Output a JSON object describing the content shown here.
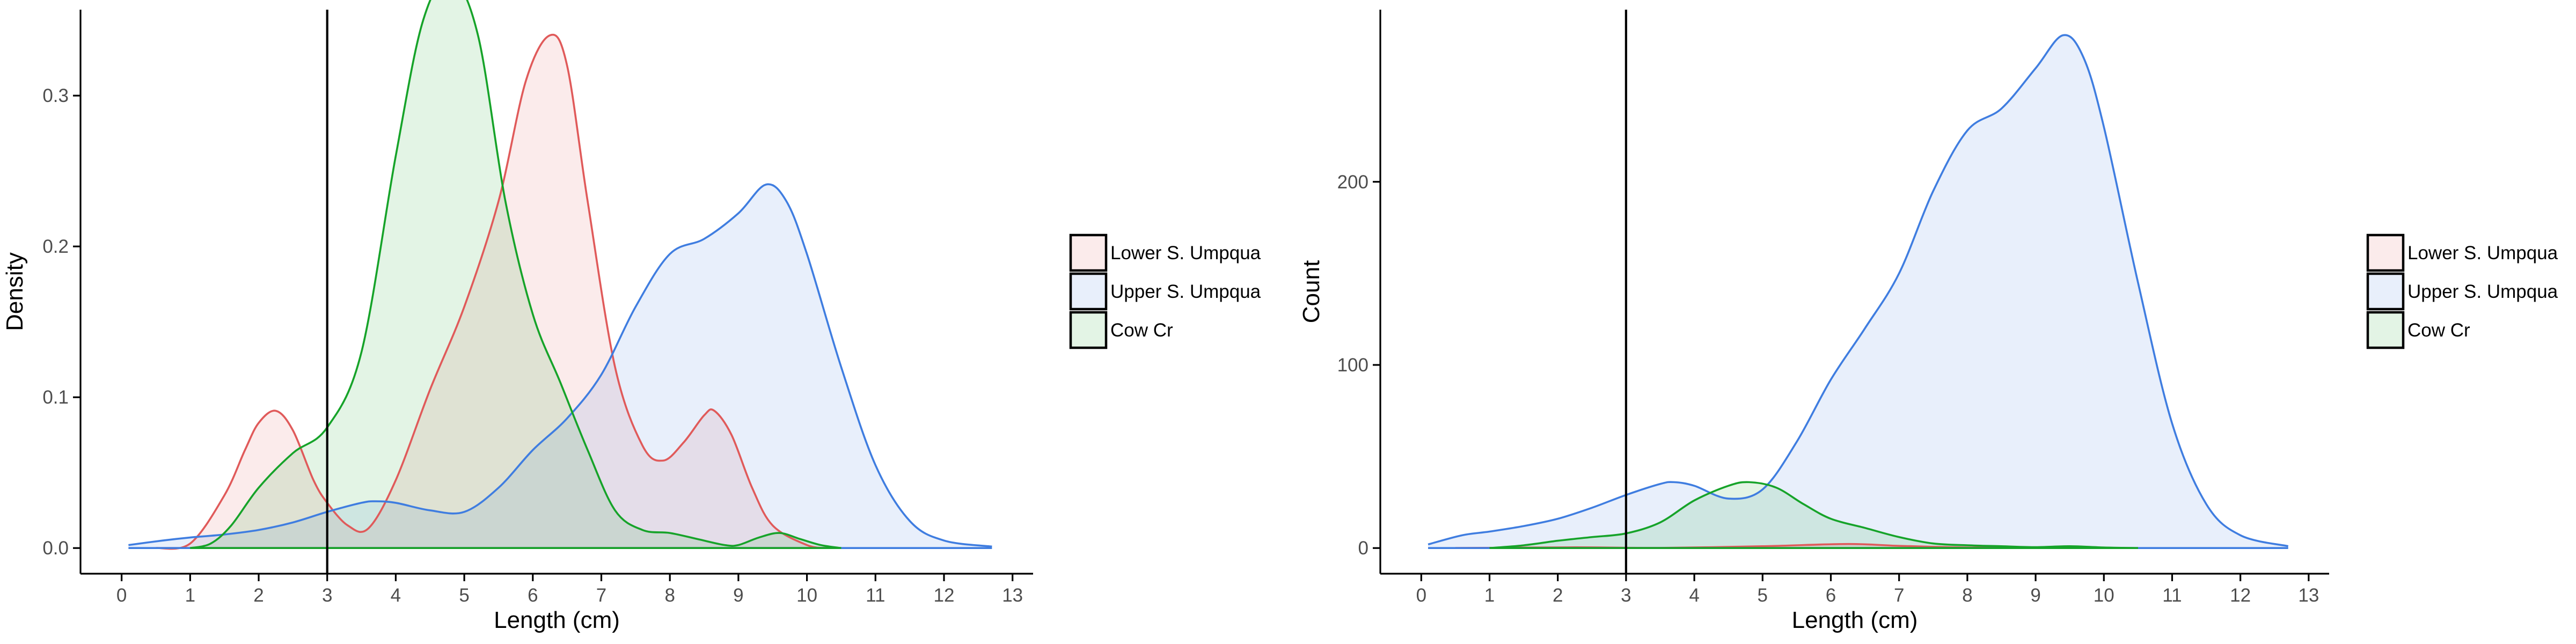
{
  "colors": {
    "Lower S. Umpqua": "#e05a5a",
    "Upper S. Umpqua": "#3f7de0",
    "Cow Cr": "#16a329"
  },
  "chart_data": [
    {
      "type": "area",
      "xlabel": "Length (cm)",
      "ylabel": "Density",
      "xlim": [
        -0.6,
        13.3
      ],
      "ylim": [
        -0.017,
        0.357
      ],
      "x_ticks": [
        "0",
        "1",
        "2",
        "3",
        "4",
        "5",
        "6",
        "7",
        "8",
        "9",
        "10",
        "11",
        "12",
        "13"
      ],
      "y_ticks": [
        "0.0",
        "0.1",
        "0.2",
        "0.3"
      ],
      "vline": 3,
      "grid": false,
      "legend_position": "right",
      "legend": [
        "Lower S. Umpqua",
        "Upper S. Umpqua",
        "Cow Cr"
      ],
      "series": [
        {
          "name": "Lower S. Umpqua",
          "x": [
            0.5,
            1.0,
            1.5,
            1.8,
            2.0,
            2.25,
            2.5,
            2.8,
            3.0,
            3.3,
            3.6,
            4.0,
            4.5,
            5.0,
            5.5,
            5.9,
            6.25,
            6.5,
            6.8,
            7.2,
            7.6,
            7.9,
            8.2,
            8.5,
            8.65,
            8.9,
            9.2,
            9.5,
            10.0,
            10.3
          ],
          "y": [
            0.0,
            0.003,
            0.035,
            0.065,
            0.083,
            0.091,
            0.078,
            0.045,
            0.03,
            0.015,
            0.013,
            0.045,
            0.105,
            0.16,
            0.23,
            0.31,
            0.34,
            0.32,
            0.23,
            0.12,
            0.068,
            0.058,
            0.07,
            0.088,
            0.091,
            0.075,
            0.04,
            0.015,
            0.002,
            0.0
          ],
          "values": [
            0.0,
            0.003,
            0.035,
            0.065,
            0.083,
            0.091,
            0.078,
            0.045,
            0.03,
            0.015,
            0.013,
            0.045,
            0.105,
            0.16,
            0.23,
            0.31,
            0.34,
            0.32,
            0.23,
            0.12,
            0.068,
            0.058,
            0.07,
            0.088,
            0.091,
            0.075,
            0.04,
            0.015,
            0.002,
            0.0
          ]
        },
        {
          "name": "Upper S. Umpqua",
          "x": [
            0.1,
            0.6,
            1.0,
            1.5,
            2.0,
            2.5,
            3.0,
            3.5,
            3.7,
            4.0,
            4.5,
            5.0,
            5.5,
            6.0,
            6.5,
            7.0,
            7.5,
            8.0,
            8.5,
            9.0,
            9.4,
            9.7,
            10.0,
            10.5,
            11.0,
            11.5,
            12.0,
            12.7
          ],
          "y": [
            0.002,
            0.005,
            0.007,
            0.009,
            0.012,
            0.017,
            0.024,
            0.03,
            0.031,
            0.03,
            0.025,
            0.024,
            0.04,
            0.065,
            0.086,
            0.115,
            0.16,
            0.195,
            0.205,
            0.222,
            0.241,
            0.23,
            0.195,
            0.12,
            0.055,
            0.018,
            0.005,
            0.001
          ],
          "values": [
            0.002,
            0.005,
            0.007,
            0.009,
            0.012,
            0.017,
            0.024,
            0.03,
            0.031,
            0.03,
            0.025,
            0.024,
            0.04,
            0.065,
            0.086,
            0.115,
            0.16,
            0.195,
            0.205,
            0.222,
            0.241,
            0.23,
            0.195,
            0.12,
            0.055,
            0.018,
            0.005,
            0.001
          ]
        },
        {
          "name": "Cow Cr",
          "x": [
            1.0,
            1.3,
            1.6,
            2.0,
            2.5,
            3.0,
            3.5,
            4.0,
            4.4,
            4.8,
            5.2,
            5.6,
            6.0,
            6.4,
            6.8,
            7.2,
            7.6,
            8.0,
            8.4,
            8.8,
            9.0,
            9.3,
            9.6,
            9.9,
            10.2,
            10.5
          ],
          "y": [
            0.0,
            0.003,
            0.015,
            0.04,
            0.063,
            0.08,
            0.13,
            0.26,
            0.35,
            0.378,
            0.34,
            0.23,
            0.155,
            0.11,
            0.065,
            0.025,
            0.012,
            0.01,
            0.006,
            0.002,
            0.002,
            0.007,
            0.01,
            0.006,
            0.002,
            0.0
          ],
          "values": [
            0.0,
            0.003,
            0.015,
            0.04,
            0.063,
            0.08,
            0.13,
            0.26,
            0.35,
            0.378,
            0.34,
            0.23,
            0.155,
            0.11,
            0.065,
            0.025,
            0.012,
            0.01,
            0.006,
            0.002,
            0.002,
            0.007,
            0.01,
            0.006,
            0.002,
            0.0
          ]
        }
      ]
    },
    {
      "type": "area",
      "xlabel": "Length (cm)",
      "ylabel": "Count",
      "xlim": [
        -0.6,
        13.3
      ],
      "ylim": [
        -14,
        294
      ],
      "x_ticks": [
        "0",
        "1",
        "2",
        "3",
        "4",
        "5",
        "6",
        "7",
        "8",
        "9",
        "10",
        "11",
        "12",
        "13"
      ],
      "y_ticks": [
        "0",
        "100",
        "200"
      ],
      "vline": 3,
      "grid": false,
      "legend_position": "right",
      "legend": [
        "Lower S. Umpqua",
        "Upper S. Umpqua",
        "Cow Cr"
      ],
      "series": [
        {
          "name": "Lower S. Umpqua",
          "x": [
            0.5,
            2.25,
            3.5,
            5.0,
            6.25,
            7.0,
            8.0,
            8.65,
            9.5,
            10.3
          ],
          "y": [
            0.0,
            0.4,
            0.1,
            1.0,
            2.2,
            1.2,
            0.3,
            0.4,
            0.1,
            0.0
          ],
          "values": [
            0.0,
            0.4,
            0.1,
            1.0,
            2.2,
            1.2,
            0.3,
            0.4,
            0.1,
            0.0
          ]
        },
        {
          "name": "Upper S. Umpqua",
          "x": [
            0.1,
            0.6,
            1.0,
            1.5,
            2.0,
            2.5,
            3.0,
            3.5,
            3.7,
            4.0,
            4.5,
            5.0,
            5.5,
            6.0,
            6.5,
            7.0,
            7.5,
            8.0,
            8.5,
            9.0,
            9.4,
            9.7,
            10.0,
            10.5,
            11.0,
            11.5,
            12.0,
            12.7
          ],
          "y": [
            2,
            7,
            9,
            12,
            16,
            22,
            29,
            35,
            36,
            34,
            27,
            32,
            58,
            92,
            120,
            150,
            195,
            228,
            240,
            262,
            280,
            268,
            230,
            145,
            68,
            24,
            7,
            1
          ],
          "values": [
            2,
            7,
            9,
            12,
            16,
            22,
            29,
            35,
            36,
            34,
            27,
            32,
            58,
            92,
            120,
            150,
            195,
            228,
            240,
            262,
            280,
            268,
            230,
            145,
            68,
            24,
            7,
            1
          ]
        },
        {
          "name": "Cow Cr",
          "x": [
            1.0,
            1.5,
            2.0,
            2.5,
            3.0,
            3.5,
            4.0,
            4.5,
            4.8,
            5.2,
            5.6,
            6.0,
            6.5,
            7.0,
            7.5,
            8.0,
            8.5,
            9.0,
            9.5,
            10.0,
            10.5
          ],
          "y": [
            0.0,
            1.5,
            4,
            6,
            8,
            14,
            26,
            34,
            36,
            33,
            24,
            16,
            11,
            6,
            2.5,
            1.5,
            1,
            0.5,
            1,
            0.3,
            0.0
          ],
          "values": [
            0.0,
            1.5,
            4,
            6,
            8,
            14,
            26,
            34,
            36,
            33,
            24,
            16,
            11,
            6,
            2.5,
            1.5,
            1,
            0.5,
            1,
            0.3,
            0.0
          ]
        }
      ]
    }
  ]
}
